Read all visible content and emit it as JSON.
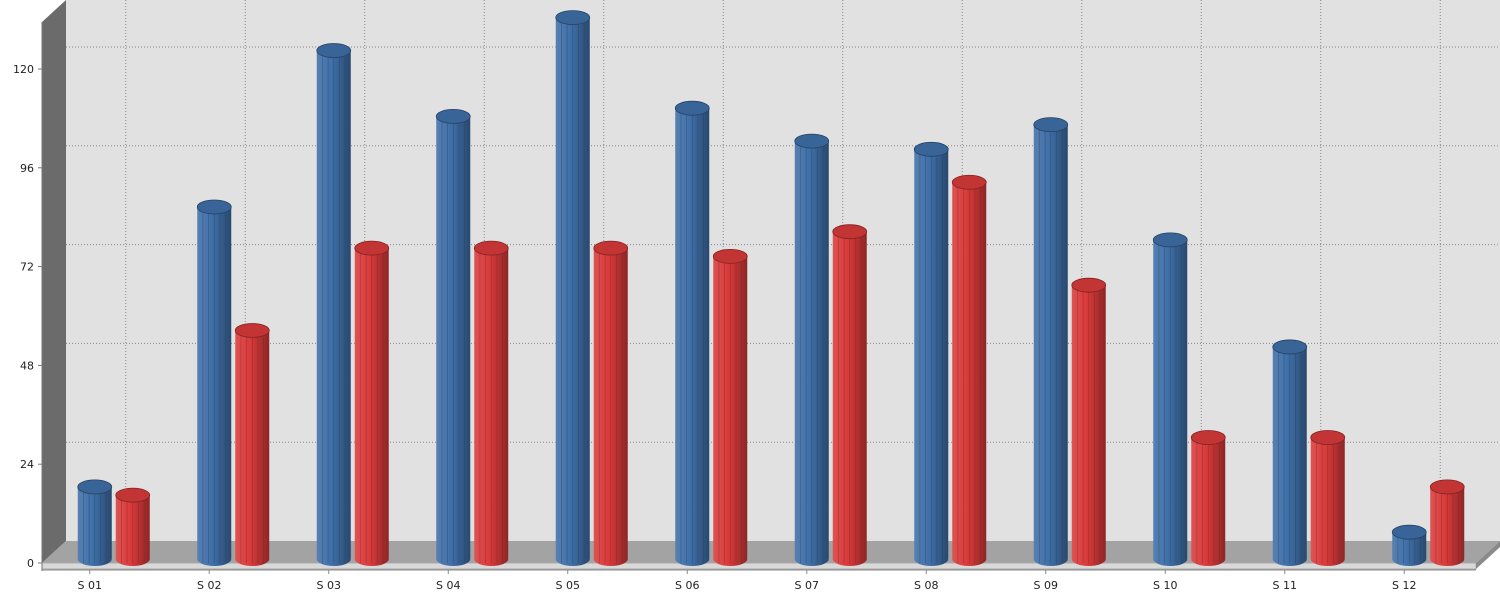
{
  "chart_data": {
    "type": "bar",
    "style": "3d-cylinder",
    "categories": [
      "S 01",
      "S 02",
      "S 03",
      "S 04",
      "S 05",
      "S 06",
      "S 07",
      "S 08",
      "S 09",
      "S 10",
      "S 11",
      "S 12"
    ],
    "series": [
      {
        "color": "#3f6fa8",
        "values": [
          18,
          86,
          124,
          108,
          132,
          110,
          102,
          100,
          106,
          78,
          52,
          7
        ]
      },
      {
        "color": "#d93a3a",
        "values": [
          16,
          56,
          76,
          76,
          76,
          74,
          80,
          92,
          67,
          30,
          30,
          18
        ]
      }
    ],
    "ylim": [
      0,
      132
    ],
    "yticks": [
      0,
      24,
      48,
      72,
      96,
      120
    ],
    "grid": true,
    "legend": "none",
    "colors": {
      "plot_background": "#e1e1e1",
      "floor": "#a3a3a3",
      "left_wall": "#6b6b6b",
      "grid": "#888888"
    }
  }
}
